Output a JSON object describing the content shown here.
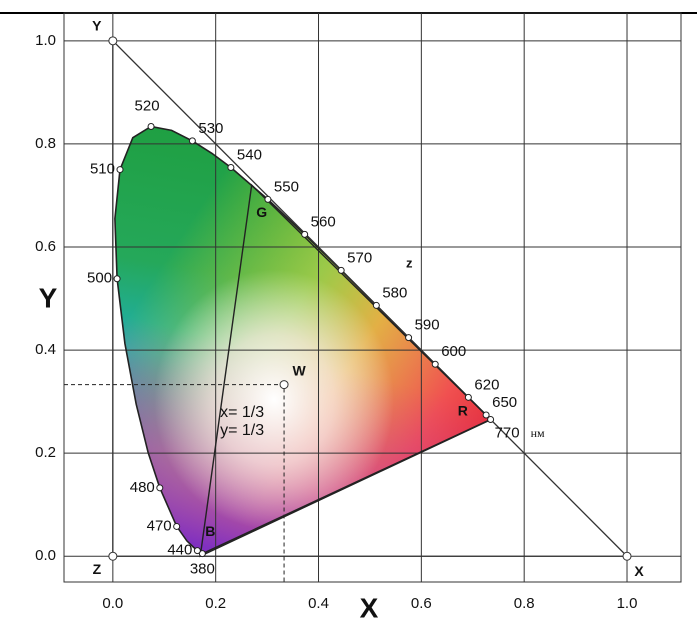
{
  "chart_data": {
    "type": "chromaticity",
    "x_label": "X",
    "y_label": "Y",
    "xlim": [
      -0.095,
      1.105
    ],
    "ylim": [
      -0.05,
      1.054
    ],
    "xticks": [
      {
        "value": 0,
        "label": "0.0"
      },
      {
        "value": 0.2,
        "label": "0.2"
      },
      {
        "value": 0.4,
        "label": "0.4"
      },
      {
        "value": 0.6,
        "label": "0.6"
      },
      {
        "value": 0.8,
        "label": "0.8"
      },
      {
        "value": 1,
        "label": "1.0"
      }
    ],
    "yticks": [
      {
        "value": 0,
        "label": "0.0"
      },
      {
        "value": 0.2,
        "label": "0.2"
      },
      {
        "value": 0.4,
        "label": "0.4"
      },
      {
        "value": 0.6,
        "label": "0.6"
      },
      {
        "value": 0.8,
        "label": "0.8"
      },
      {
        "value": 1,
        "label": "1.0"
      }
    ],
    "grid": true,
    "locus": {
      "x": [
        0.1741,
        0.1644,
        0.1566,
        0.144,
        0.1241,
        0.0913,
        0.0687,
        0.0454,
        0.0235,
        0.0082,
        0.0039,
        0.0139,
        0.0389,
        0.0743,
        0.1142,
        0.1547,
        0.1929,
        0.2296,
        0.3016,
        0.3731,
        0.4441,
        0.5125,
        0.5752,
        0.627,
        0.6915,
        0.726,
        0.7347
      ],
      "y": [
        0.005,
        0.0109,
        0.0177,
        0.0297,
        0.0578,
        0.1327,
        0.2007,
        0.295,
        0.4127,
        0.5384,
        0.6548,
        0.7502,
        0.812,
        0.8338,
        0.8262,
        0.8059,
        0.7816,
        0.7543,
        0.6923,
        0.6245,
        0.5547,
        0.4866,
        0.4242,
        0.3725,
        0.3083,
        0.274,
        0.2653
      ],
      "labels": [
        "380",
        "440",
        null,
        null,
        "470",
        "480",
        null,
        null,
        null,
        "500",
        null,
        "510",
        null,
        "520",
        null,
        "530",
        null,
        "540",
        "550",
        "560",
        "570",
        "580",
        "590",
        "600",
        "620",
        "650",
        "770"
      ],
      "unit": "нм"
    },
    "xyz_triangle": [
      {
        "label": "Y",
        "x": 0,
        "y": 1
      },
      {
        "label": "Z",
        "x": 0,
        "y": 0
      },
      {
        "label": "X",
        "x": 1,
        "y": 0
      }
    ],
    "rgb_triangle": [
      {
        "label": "G",
        "x": 0.27,
        "y": 0.72
      },
      {
        "label": "B",
        "x": 0.17,
        "y": 0.0
      },
      {
        "label": "R",
        "x": 0.735,
        "y": 0.265
      }
    ],
    "white_point": {
      "label": "W",
      "x": 0.333,
      "y": 0.333,
      "x_text": "x= 1/3",
      "y_text": "y= 1/3"
    },
    "annotation": "z"
  }
}
